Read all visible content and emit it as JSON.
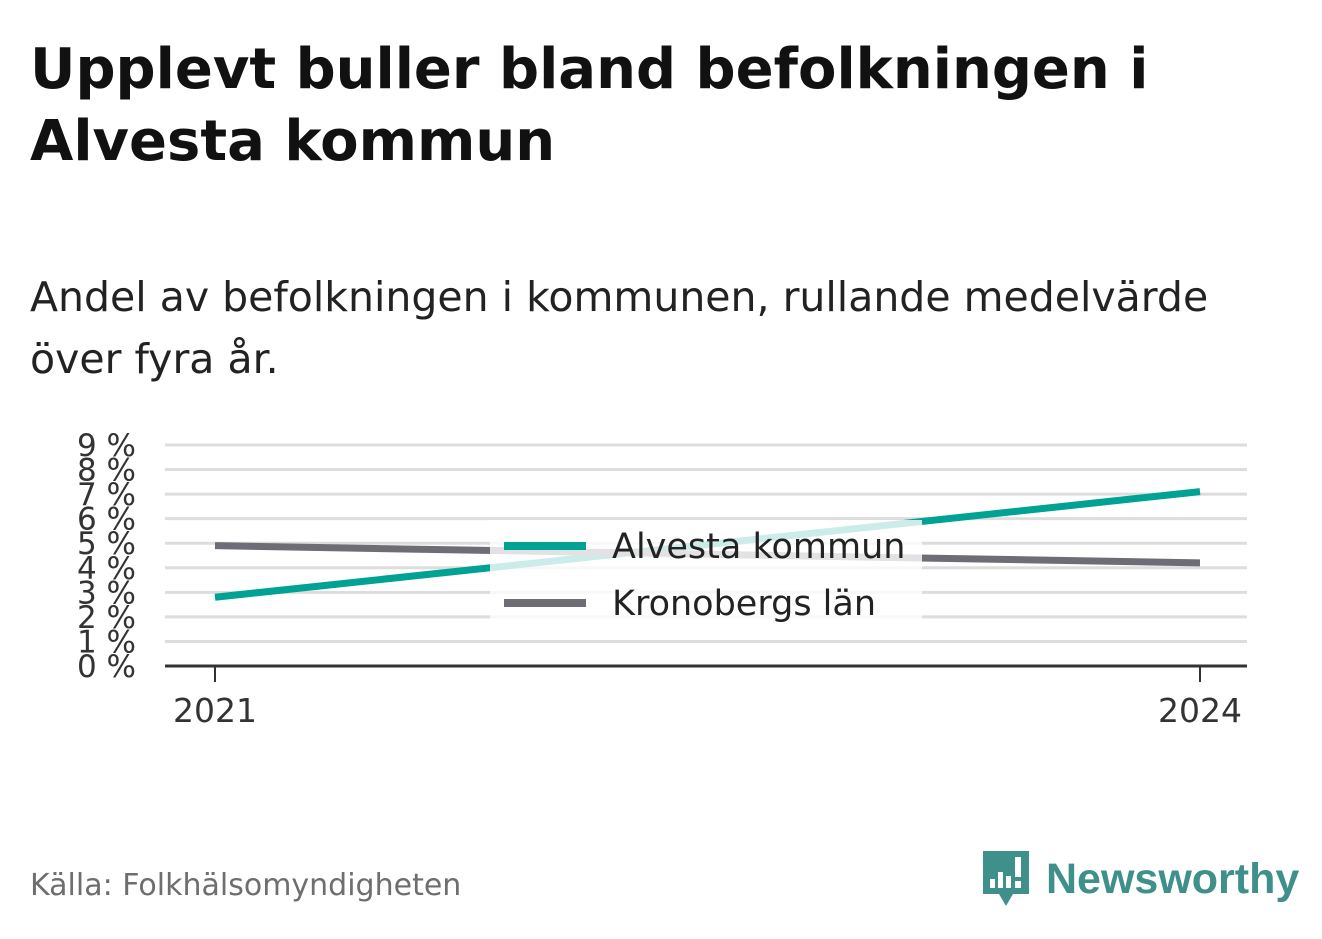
{
  "header": {
    "title": "Upplevt buller bland befolkningen i Alvesta kommun",
    "subtitle": "Andel av befolkningen i kommunen, rullande medelvärde över fyra år."
  },
  "footer": {
    "source": "Källa: Folkhälsomyndigheten",
    "brand": "Newsworthy"
  },
  "colors": {
    "alvesta": "#00a294",
    "kronoberg": "#6e6c75",
    "grid": "#dddddd",
    "axis": "#333333",
    "brand": "#3f8f8b"
  },
  "chart_data": {
    "type": "line",
    "x": [
      "2021",
      "2024"
    ],
    "xticks": [
      "2021",
      "2024"
    ],
    "ylim": [
      0,
      9
    ],
    "yticks": [
      "0 %",
      "1 %",
      "2 %",
      "3 %",
      "4 %",
      "5 %",
      "6 %",
      "7 %",
      "8 %",
      "9 %"
    ],
    "grid": true,
    "legend": "center",
    "series": [
      {
        "name": "Alvesta kommun",
        "color": "#00a294",
        "values": [
          2.8,
          7.1
        ]
      },
      {
        "name": "Kronobergs län",
        "color": "#6e6c75",
        "values": [
          4.9,
          4.2
        ]
      }
    ]
  }
}
